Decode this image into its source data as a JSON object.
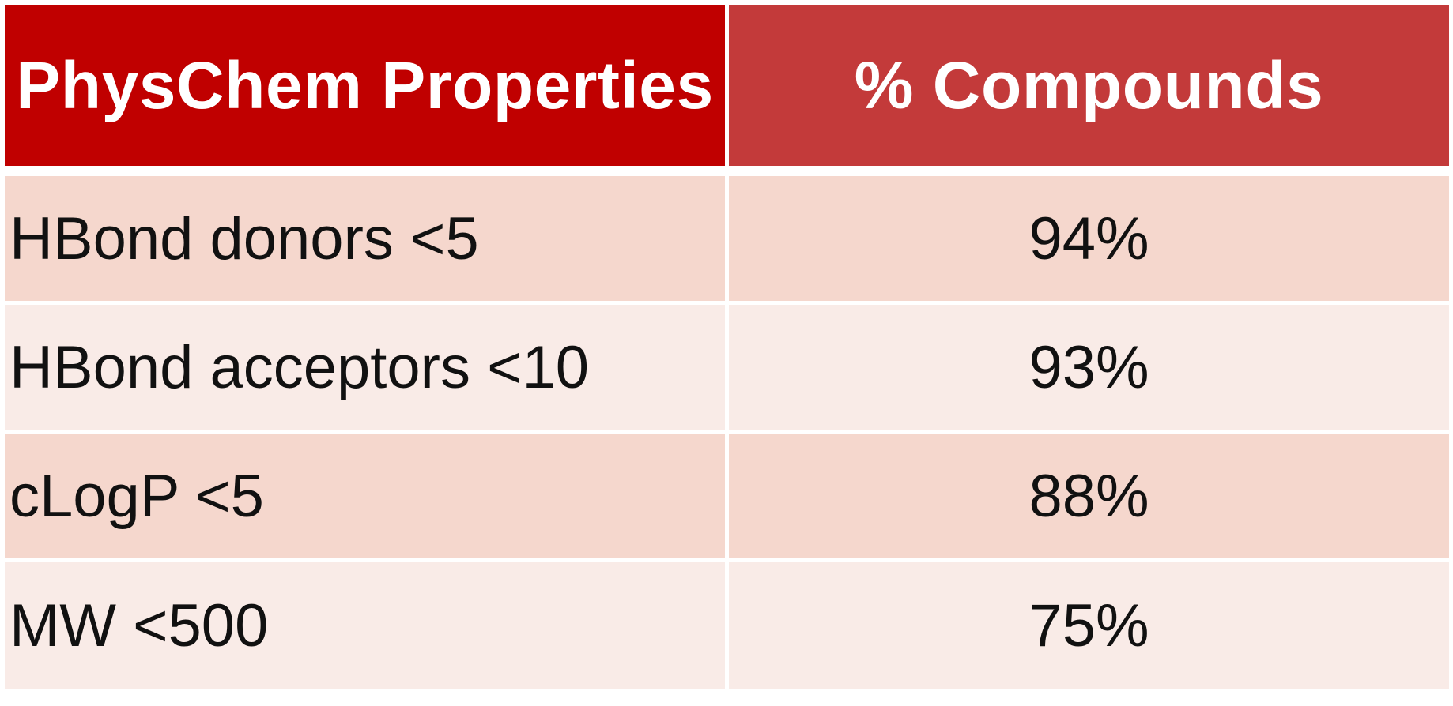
{
  "table": {
    "headers": [
      "PhysChem Properties",
      "% Compounds"
    ],
    "rows": [
      {
        "property": "HBond donors <5",
        "percent": "94%"
      },
      {
        "property": "HBond acceptors <10",
        "percent": "93%"
      },
      {
        "property": "cLogP <5",
        "percent": "88%"
      },
      {
        "property": "MW <500",
        "percent": "75%"
      }
    ]
  },
  "colors": {
    "header_left": "#c00000",
    "header_right": "#c33a3a",
    "row_dark": "#f5d7cd",
    "row_light": "#f9ebe7"
  }
}
